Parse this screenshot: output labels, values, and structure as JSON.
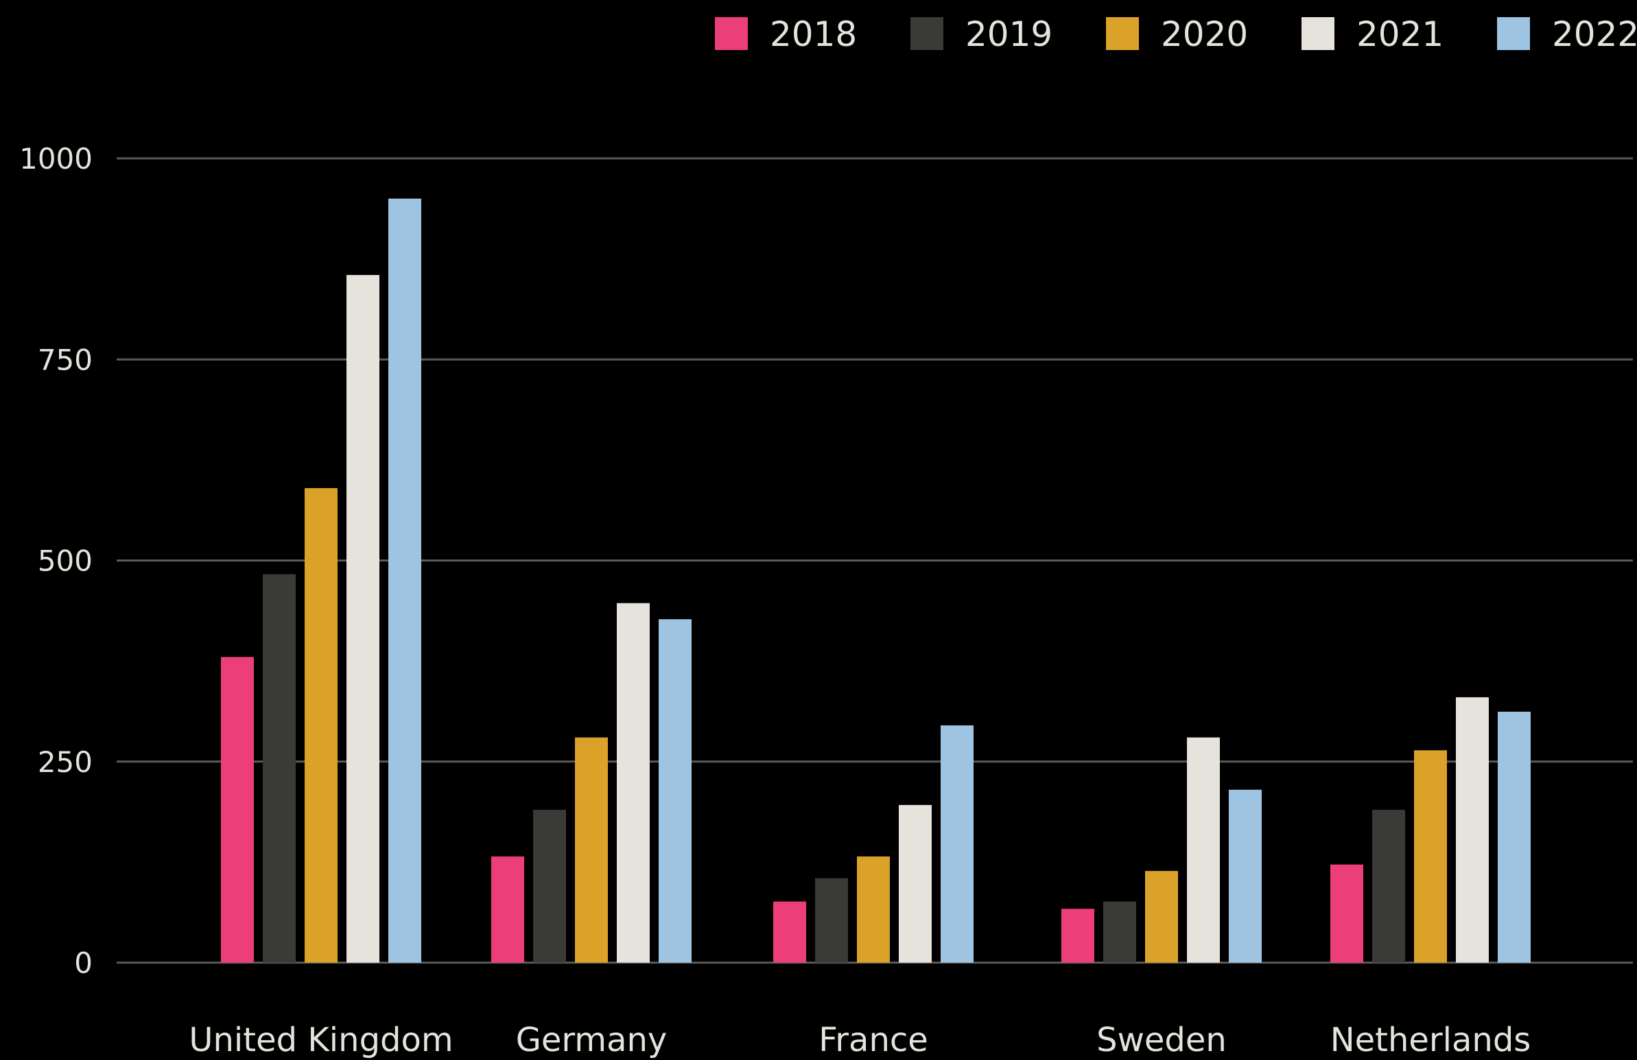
{
  "chart_data": {
    "type": "bar",
    "categories": [
      "United Kingdom",
      "Germany",
      "France",
      "Sweden",
      "Netherlands"
    ],
    "series": [
      {
        "name": "2018",
        "color": "#ec3f7a",
        "values": [
          380,
          132,
          76,
          67,
          122
        ]
      },
      {
        "name": "2019",
        "color": "#3a3a37",
        "values": [
          483,
          190,
          105,
          76,
          190
        ]
      },
      {
        "name": "2020",
        "color": "#dba22a",
        "values": [
          590,
          280,
          132,
          114,
          264
        ]
      },
      {
        "name": "2021",
        "color": "#e6e2dc",
        "values": [
          855,
          447,
          196,
          280,
          330
        ]
      },
      {
        "name": "2022",
        "color": "#9fc4e2",
        "values": [
          950,
          427,
          295,
          215,
          312
        ]
      }
    ],
    "yticks": [
      0,
      250,
      500,
      750,
      1000
    ],
    "ylim": [
      0,
      1000
    ],
    "grid": true,
    "legend": "top-right",
    "title": "",
    "xlabel": "",
    "ylabel": ""
  }
}
